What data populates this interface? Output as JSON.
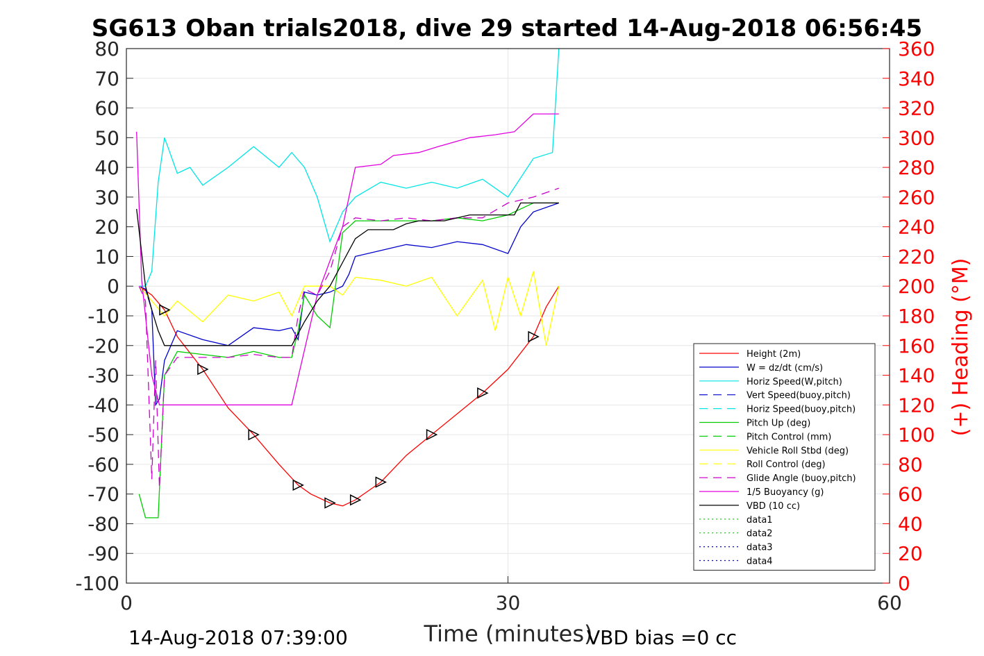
{
  "chart_data": {
    "type": "line",
    "title": "SG613 Oban trials2018, dive 29 started 14-Aug-2018 06:56:45",
    "xlabel": "Time (minutes)",
    "ylabel": "",
    "y2label": "(+) Heading (°M)",
    "xlim": [
      0,
      60
    ],
    "ylim": [
      -100,
      80
    ],
    "y2lim": [
      0,
      360
    ],
    "xticks": [
      "0",
      "30",
      "60"
    ],
    "yticks": [
      "80",
      "70",
      "60",
      "50",
      "40",
      "30",
      "20",
      "10",
      "0",
      "-10",
      "-20",
      "-30",
      "-40",
      "-50",
      "-60",
      "-70",
      "-80",
      "-90",
      "-100"
    ],
    "y2ticks": [
      "360",
      "340",
      "320",
      "300",
      "280",
      "260",
      "240",
      "220",
      "200",
      "180",
      "160",
      "140",
      "120",
      "100",
      "80",
      "60",
      "40",
      "20",
      "0"
    ],
    "grid": true,
    "legend_position": "lower-right inside",
    "footer_left": "14-Aug-2018 07:39:00",
    "footer_right": "VBD bias =0 cc",
    "colors": {
      "height": "#ff0000",
      "w": "#0000cc",
      "horiz": "#00e5e5",
      "pitch": "#00cc00",
      "roll": "#ffff00",
      "glide": "#cc00cc",
      "buoy": "#e000e0",
      "vbd": "#000000",
      "heading": "#ff0000"
    },
    "legend": [
      {
        "label": "Height (2m)",
        "color": "#ff0000",
        "dash": "solid"
      },
      {
        "label": "W = dz/dt (cm/s)",
        "color": "#0000cc",
        "dash": "solid"
      },
      {
        "label": "Horiz Speed(W,pitch)",
        "color": "#00e5e5",
        "dash": "solid"
      },
      {
        "label": "Vert Speed(buoy,pitch)",
        "color": "#0000cc",
        "dash": "dashed"
      },
      {
        "label": "Horiz Speed(buoy,pitch)",
        "color": "#00e5e5",
        "dash": "dashed"
      },
      {
        "label": "Pitch Up (deg)",
        "color": "#00cc00",
        "dash": "solid"
      },
      {
        "label": "Pitch Control (mm)",
        "color": "#00cc00",
        "dash": "dashed"
      },
      {
        "label": "Vehicle Roll Stbd (deg)",
        "color": "#ffff00",
        "dash": "solid"
      },
      {
        "label": "Roll Control (deg)",
        "color": "#ffff00",
        "dash": "dashed"
      },
      {
        "label": "Glide Angle (buoy,pitch)",
        "color": "#cc00cc",
        "dash": "dashed"
      },
      {
        "label": "1/5 Buoyancy (g)",
        "color": "#e000e0",
        "dash": "solid"
      },
      {
        "label": "VBD (10 cc)",
        "color": "#000000",
        "dash": "solid"
      },
      {
        "label": "data1",
        "color": "#00cc00",
        "dash": "dotted"
      },
      {
        "label": "data2",
        "color": "#00cc00",
        "dash": "dotted"
      },
      {
        "label": "data3",
        "color": "#0000cc",
        "dash": "dotted"
      },
      {
        "label": "data4",
        "color": "#0000cc",
        "dash": "dotted"
      }
    ],
    "series": [
      {
        "name": "Height (2m)",
        "x": [
          1,
          2,
          3,
          4,
          6,
          8,
          10,
          12,
          13.5,
          14.5,
          16,
          17,
          18,
          19,
          20,
          22,
          24,
          26,
          28,
          30,
          32,
          33,
          34
        ],
        "y": [
          0,
          -3,
          -8,
          -17,
          -28,
          -41,
          -50,
          -60,
          -67,
          -70,
          -73,
          -74,
          -72,
          -69,
          -66,
          -57,
          -50,
          -43,
          -36,
          -28,
          -17,
          -7,
          0
        ]
      },
      {
        "name": "W = dz/dt (cm/s)",
        "x": [
          1,
          1.5,
          2,
          2.3,
          2.6,
          3,
          4,
          6,
          8,
          10,
          12,
          13,
          13.5,
          14,
          15,
          16,
          17,
          17.5,
          18,
          20,
          22,
          24,
          26,
          28,
          30,
          31,
          32,
          34
        ],
        "y": [
          0,
          -1,
          -8,
          -40,
          -38,
          -25,
          -15,
          -18,
          -20,
          -14,
          -15,
          -14,
          -18,
          -2,
          -3,
          -2,
          0,
          4,
          10,
          12,
          14,
          13,
          15,
          14,
          11,
          20,
          25,
          28
        ]
      },
      {
        "name": "Horiz Speed(W,pitch)",
        "x": [
          1,
          1.5,
          2,
          2.5,
          3,
          4,
          5,
          6,
          8,
          10,
          12,
          13,
          14,
          15,
          16,
          17,
          18,
          20,
          22,
          24,
          26,
          28,
          30,
          32,
          33.5,
          34
        ],
        "y": [
          0,
          0,
          5,
          35,
          50,
          38,
          40,
          34,
          40,
          47,
          40,
          45,
          40,
          30,
          15,
          25,
          30,
          35,
          33,
          35,
          33,
          36,
          30,
          43,
          45,
          80
        ]
      },
      {
        "name": "Pitch Up (deg)",
        "x": [
          1,
          1.5,
          2,
          2.5,
          3,
          4,
          6,
          8,
          10,
          12,
          13,
          13.5,
          14,
          15,
          16,
          17,
          17.5,
          18,
          20,
          22,
          24,
          26,
          28,
          30,
          32,
          34
        ],
        "y": [
          -70,
          -78,
          -78,
          -78,
          -30,
          -22,
          -23,
          -24,
          -22,
          -24,
          -24,
          -15,
          -3,
          -10,
          -14,
          18,
          20,
          22,
          22,
          22,
          22,
          23,
          22,
          24,
          28,
          28
        ]
      },
      {
        "name": "Vehicle Roll Stbd (deg)",
        "x": [
          1,
          2,
          3,
          4,
          6,
          8,
          10,
          12,
          13,
          14,
          16,
          17,
          18,
          20,
          22,
          24,
          26,
          28,
          29,
          30,
          31,
          32,
          33,
          34
        ],
        "y": [
          0,
          -5,
          -10,
          -5,
          -12,
          -3,
          -5,
          -2,
          -10,
          0,
          0,
          -3,
          3,
          2,
          0,
          3,
          -10,
          2,
          -15,
          3,
          -10,
          5,
          -20,
          0
        ]
      },
      {
        "name": "Glide Angle (buoy,pitch)",
        "x": [
          1,
          1.5,
          2,
          2.3,
          2.6,
          3,
          4,
          6,
          8,
          10,
          12,
          13,
          13.5,
          14,
          15,
          16,
          17,
          18,
          20,
          22,
          24,
          26,
          28,
          30,
          32,
          34
        ],
        "y": [
          0,
          -5,
          -65,
          -25,
          -68,
          -30,
          -24,
          -24,
          -24,
          -23,
          -24,
          -24,
          -10,
          -1,
          -3,
          5,
          20,
          23,
          22,
          23,
          22,
          23,
          23,
          28,
          30,
          33
        ]
      },
      {
        "name": "1/5 Buoyancy (g)",
        "x": [
          0.8,
          1.2,
          2,
          2.6,
          3,
          4,
          6,
          8,
          10,
          12,
          13,
          15,
          17,
          18,
          20,
          21,
          23,
          24.5,
          27,
          29,
          30.5,
          32,
          34
        ],
        "y": [
          52,
          2,
          -30,
          -40,
          -40,
          -40,
          -40,
          -40,
          -40,
          -40,
          -40,
          -3,
          20,
          40,
          41,
          44,
          45,
          47,
          50,
          51,
          52,
          58,
          58
        ]
      },
      {
        "name": "VBD (10 cc)",
        "x": [
          0.8,
          1.5,
          2,
          2.5,
          3,
          4,
          6,
          8,
          10,
          12,
          13,
          14,
          15,
          16,
          17,
          18,
          19,
          20,
          21,
          22,
          23,
          25,
          27,
          28,
          29,
          30,
          30.5,
          31,
          33,
          34
        ],
        "y": [
          26,
          0,
          -8,
          -15,
          -20,
          -20,
          -20,
          -20,
          -20,
          -20,
          -20,
          -12,
          -5,
          0,
          8,
          16,
          19,
          19,
          19,
          21,
          22,
          22,
          24,
          24,
          24,
          24,
          24,
          28,
          28,
          28
        ]
      }
    ]
  }
}
